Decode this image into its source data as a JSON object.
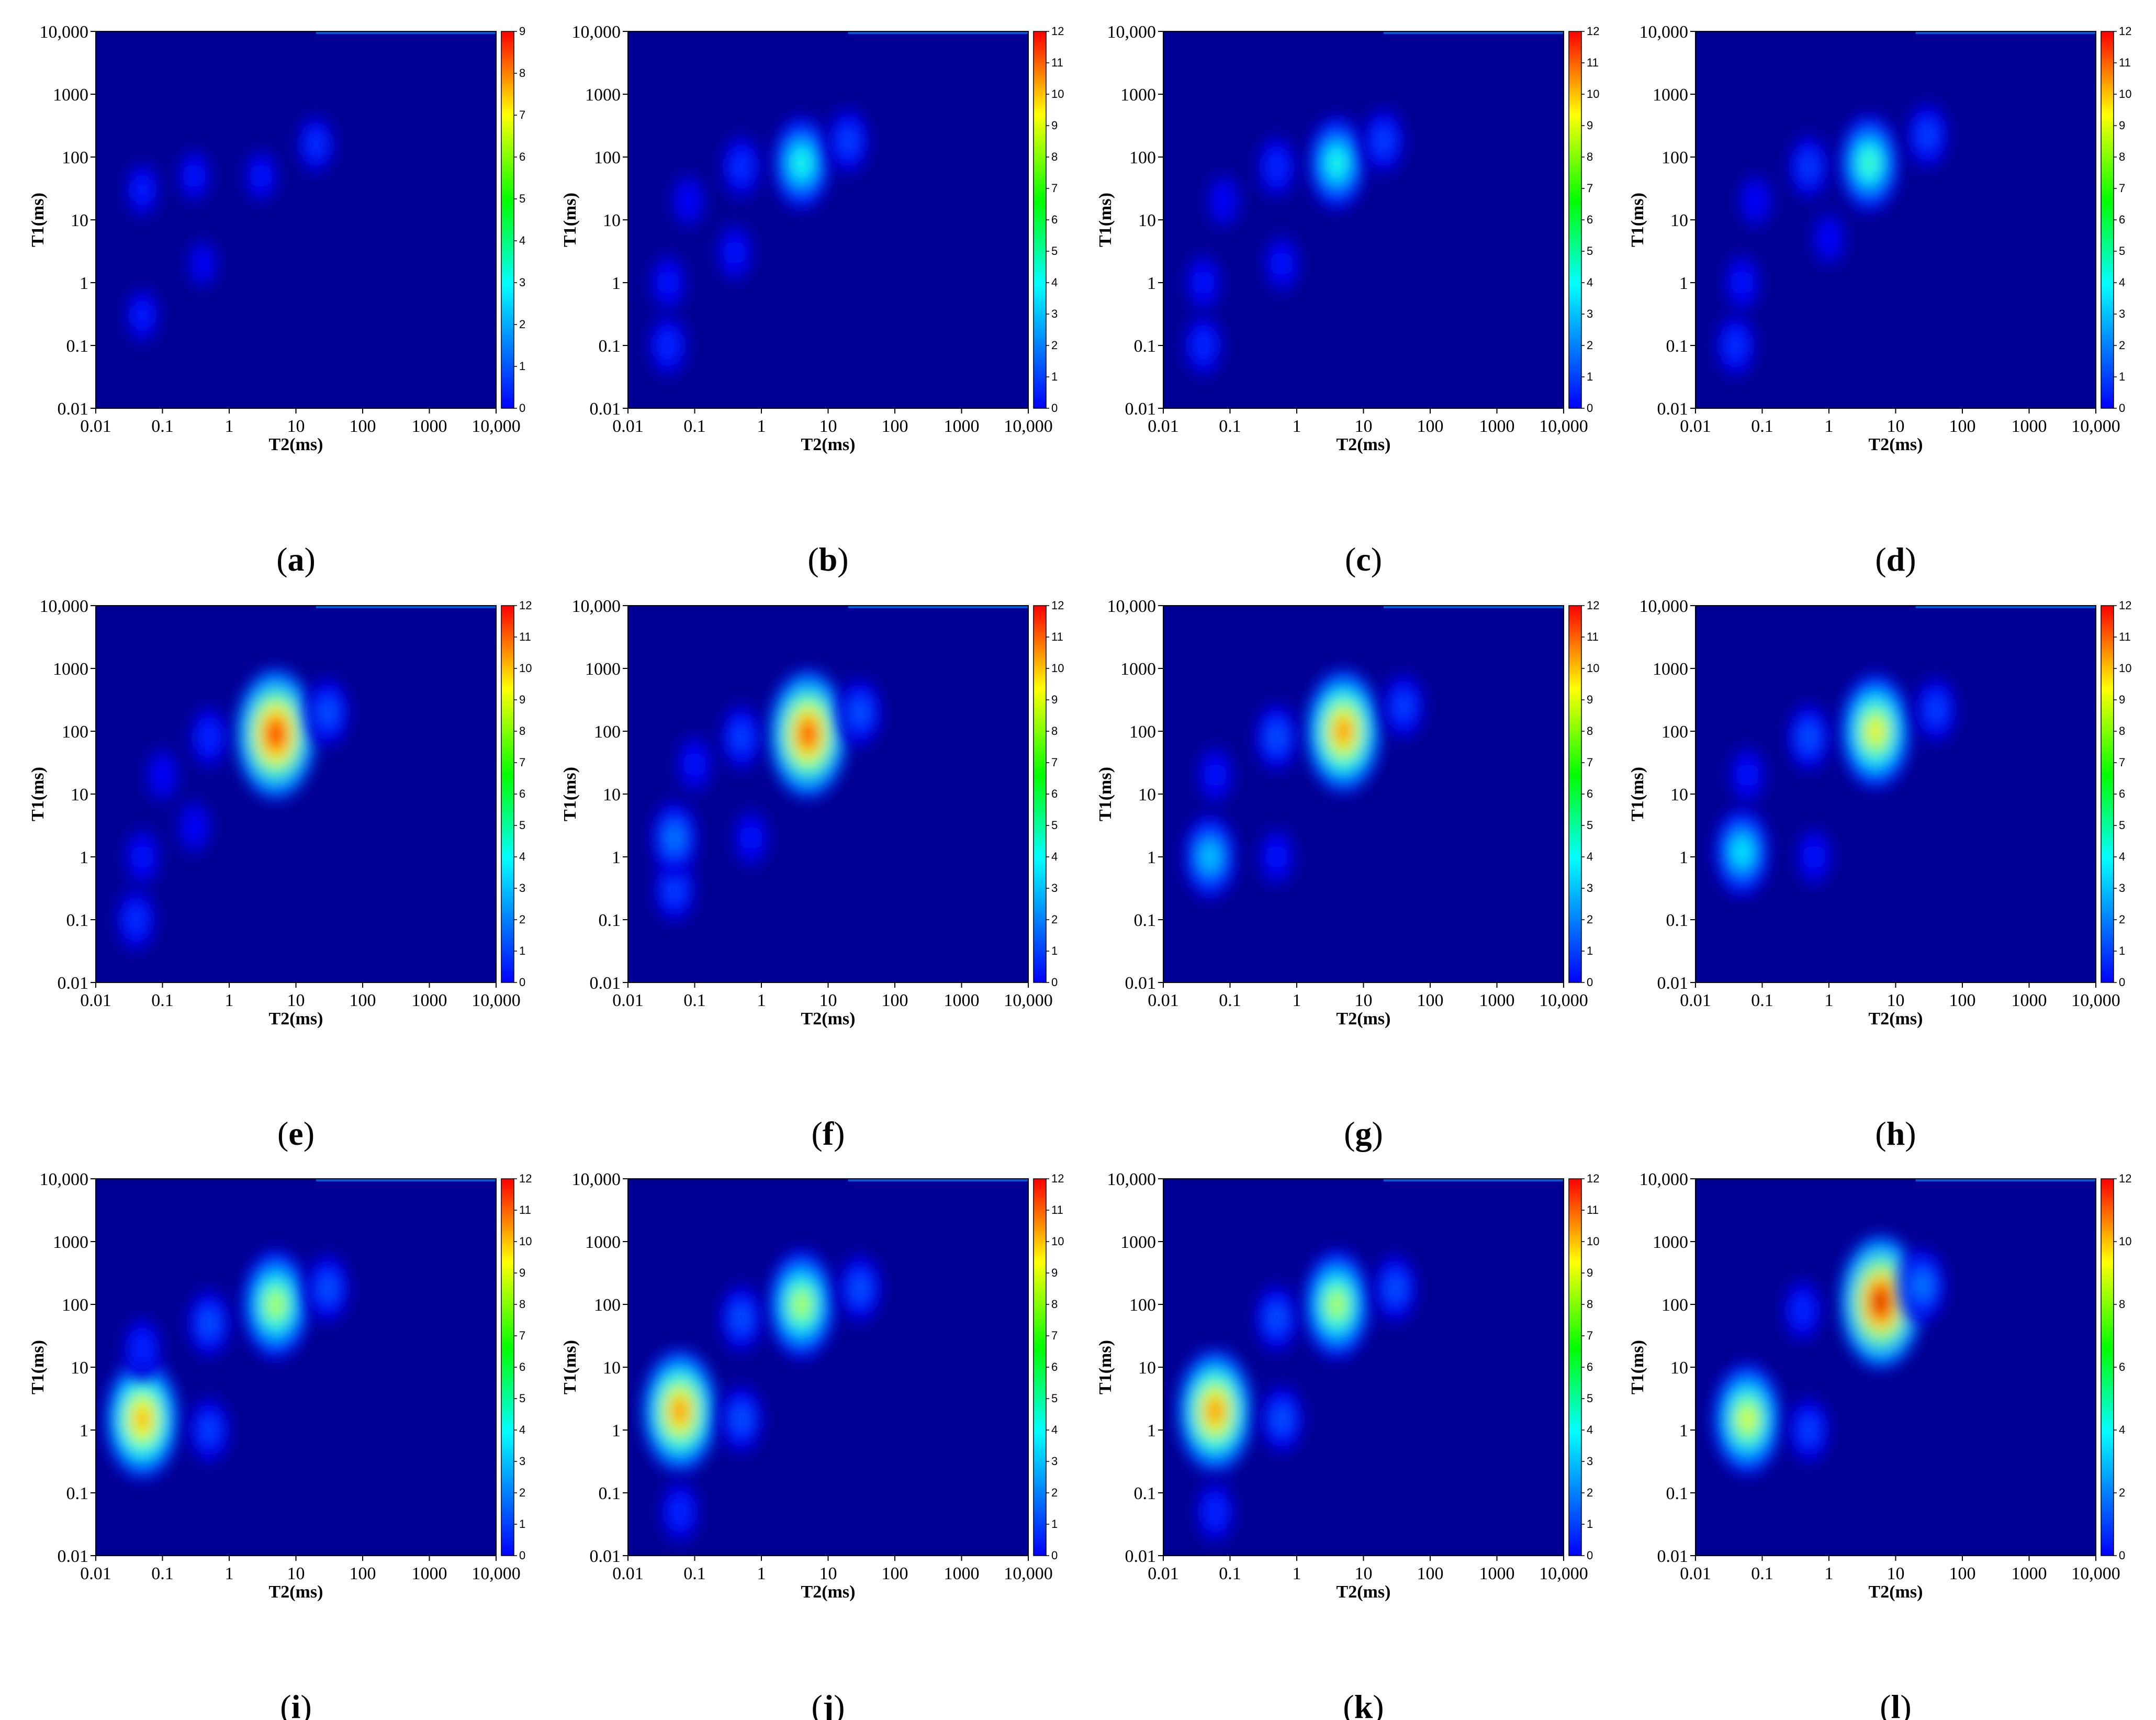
{
  "chart_data": [
    {
      "panel": "a",
      "type": "heatmap",
      "caption_label": "a",
      "xlabel": "T2(ms)",
      "ylabel": "T1(ms)",
      "xlim": [
        0.01,
        10000
      ],
      "ylim": [
        0.01,
        10000
      ],
      "xscale": "log",
      "yscale": "log",
      "xticks": [
        "0.01",
        "0.1",
        "1",
        "10",
        "100",
        "1000",
        "10,000"
      ],
      "yticks": [
        "0.01",
        "0.1",
        "1",
        "10",
        "100",
        "1000",
        "10,000"
      ],
      "colorbar": {
        "min": 0,
        "max": 9,
        "ticks": [
          "0",
          "1",
          "2",
          "3",
          "4",
          "5",
          "6",
          "7",
          "8",
          "9"
        ]
      },
      "peaks": [
        {
          "t2": 0.05,
          "t1": 0.3,
          "amplitude": 1.0
        },
        {
          "t2": 0.05,
          "t1": 30,
          "amplitude": 1.0
        },
        {
          "t2": 0.3,
          "t1": 50,
          "amplitude": 0.9
        },
        {
          "t2": 3,
          "t1": 50,
          "amplitude": 0.9
        },
        {
          "t2": 0.4,
          "t1": 2,
          "amplitude": 0.7
        },
        {
          "t2": 20,
          "t1": 160,
          "amplitude": 1.2
        }
      ]
    },
    {
      "panel": "b",
      "type": "heatmap",
      "caption_label": "b",
      "xlabel": "T2(ms)",
      "ylabel": "T1(ms)",
      "xlim": [
        0.01,
        10000
      ],
      "ylim": [
        0.01,
        10000
      ],
      "xscale": "log",
      "yscale": "log",
      "xticks": [
        "0.01",
        "0.1",
        "1",
        "10",
        "100",
        "1000",
        "10,000"
      ],
      "yticks": [
        "0.01",
        "0.1",
        "1",
        "10",
        "100",
        "1000",
        "10,000"
      ],
      "colorbar": {
        "min": 0,
        "max": 12,
        "ticks": [
          "0",
          "1",
          "2",
          "3",
          "4",
          "5",
          "6",
          "7",
          "8",
          "9",
          "10",
          "11",
          "12"
        ]
      },
      "peaks": [
        {
          "t2": 0.04,
          "t1": 0.1,
          "amplitude": 1.5
        },
        {
          "t2": 0.04,
          "t1": 1,
          "amplitude": 1.2
        },
        {
          "t2": 0.08,
          "t1": 20,
          "amplitude": 1.0
        },
        {
          "t2": 0.5,
          "t1": 70,
          "amplitude": 1.6
        },
        {
          "t2": 0.4,
          "t1": 3,
          "amplitude": 1.2
        },
        {
          "t2": 4,
          "t1": 80,
          "amplitude": 4.5
        },
        {
          "t2": 20,
          "t1": 180,
          "amplitude": 1.8
        }
      ]
    },
    {
      "panel": "c",
      "type": "heatmap",
      "caption_label": "c",
      "xlabel": "T2(ms)",
      "ylabel": "T1(ms)",
      "xlim": [
        0.01,
        10000
      ],
      "ylim": [
        0.01,
        10000
      ],
      "xscale": "log",
      "yscale": "log",
      "xticks": [
        "0.01",
        "0.1",
        "1",
        "10",
        "100",
        "1000",
        "10,000"
      ],
      "yticks": [
        "0.01",
        "0.1",
        "1",
        "10",
        "100",
        "1000",
        "10,000"
      ],
      "colorbar": {
        "min": 0,
        "max": 12,
        "ticks": [
          "0",
          "1",
          "2",
          "3",
          "4",
          "5",
          "6",
          "7",
          "8",
          "9",
          "10",
          "11",
          "12"
        ]
      },
      "peaks": [
        {
          "t2": 0.04,
          "t1": 0.1,
          "amplitude": 1.5
        },
        {
          "t2": 0.04,
          "t1": 1,
          "amplitude": 1.2
        },
        {
          "t2": 0.08,
          "t1": 20,
          "amplitude": 1.0
        },
        {
          "t2": 0.5,
          "t1": 70,
          "amplitude": 1.5
        },
        {
          "t2": 0.6,
          "t1": 2,
          "amplitude": 1.2
        },
        {
          "t2": 4,
          "t1": 80,
          "amplitude": 4.5
        },
        {
          "t2": 20,
          "t1": 180,
          "amplitude": 1.8
        }
      ]
    },
    {
      "panel": "d",
      "type": "heatmap",
      "caption_label": "d",
      "xlabel": "T2(ms)",
      "ylabel": "T1(ms)",
      "xlim": [
        0.01,
        10000
      ],
      "ylim": [
        0.01,
        10000
      ],
      "xscale": "log",
      "yscale": "log",
      "xticks": [
        "0.01",
        "0.1",
        "1",
        "10",
        "100",
        "1000",
        "10,000"
      ],
      "yticks": [
        "0.01",
        "0.1",
        "1",
        "10",
        "100",
        "1000",
        "10,000"
      ],
      "colorbar": {
        "min": 0,
        "max": 12,
        "ticks": [
          "0",
          "1",
          "2",
          "3",
          "4",
          "5",
          "6",
          "7",
          "8",
          "9",
          "10",
          "11",
          "12"
        ]
      },
      "peaks": [
        {
          "t2": 0.04,
          "t1": 0.1,
          "amplitude": 1.6
        },
        {
          "t2": 0.05,
          "t1": 1,
          "amplitude": 1.2
        },
        {
          "t2": 0.08,
          "t1": 20,
          "amplitude": 1.0
        },
        {
          "t2": 0.5,
          "t1": 70,
          "amplitude": 1.7
        },
        {
          "t2": 1,
          "t1": 5,
          "amplitude": 1.0
        },
        {
          "t2": 4,
          "t1": 80,
          "amplitude": 5.0
        },
        {
          "t2": 30,
          "t1": 220,
          "amplitude": 1.8
        }
      ]
    },
    {
      "panel": "e",
      "type": "heatmap",
      "caption_label": "e",
      "xlabel": "T2(ms)",
      "ylabel": "T1(ms)",
      "xlim": [
        0.01,
        10000
      ],
      "ylim": [
        0.01,
        10000
      ],
      "xscale": "log",
      "yscale": "log",
      "xticks": [
        "0.01",
        "0.1",
        "1",
        "10",
        "100",
        "1000",
        "10,000"
      ],
      "yticks": [
        "0.01",
        "0.1",
        "1",
        "10",
        "100",
        "1000",
        "10,000"
      ],
      "colorbar": {
        "min": 0,
        "max": 12,
        "ticks": [
          "0",
          "1",
          "2",
          "3",
          "4",
          "5",
          "6",
          "7",
          "8",
          "9",
          "10",
          "11",
          "12"
        ]
      },
      "peaks": [
        {
          "t2": 0.04,
          "t1": 0.1,
          "amplitude": 1.6
        },
        {
          "t2": 0.05,
          "t1": 1,
          "amplitude": 1.2
        },
        {
          "t2": 0.1,
          "t1": 20,
          "amplitude": 1.0
        },
        {
          "t2": 0.5,
          "t1": 80,
          "amplitude": 1.5
        },
        {
          "t2": 0.3,
          "t1": 3,
          "amplitude": 1.0
        },
        {
          "t2": 5,
          "t1": 90,
          "amplitude": 10.5
        },
        {
          "t2": 30,
          "t1": 200,
          "amplitude": 2.0
        }
      ]
    },
    {
      "panel": "f",
      "type": "heatmap",
      "caption_label": "f",
      "xlabel": "T2(ms)",
      "ylabel": "T1(ms)",
      "xlim": [
        0.01,
        10000
      ],
      "ylim": [
        0.01,
        10000
      ],
      "xscale": "log",
      "yscale": "log",
      "xticks": [
        "0.01",
        "0.1",
        "1",
        "10",
        "100",
        "1000",
        "10,000"
      ],
      "yticks": [
        "0.01",
        "0.1",
        "1",
        "10",
        "100",
        "1000",
        "10,000"
      ],
      "colorbar": {
        "min": 0,
        "max": 12,
        "ticks": [
          "0",
          "1",
          "2",
          "3",
          "4",
          "5",
          "6",
          "7",
          "8",
          "9",
          "10",
          "11",
          "12"
        ]
      },
      "peaks": [
        {
          "t2": 0.05,
          "t1": 0.3,
          "amplitude": 1.8
        },
        {
          "t2": 0.05,
          "t1": 2,
          "amplitude": 2.5
        },
        {
          "t2": 0.1,
          "t1": 30,
          "amplitude": 1.2
        },
        {
          "t2": 0.5,
          "t1": 80,
          "amplitude": 1.8
        },
        {
          "t2": 0.7,
          "t1": 2,
          "amplitude": 1.2
        },
        {
          "t2": 5,
          "t1": 90,
          "amplitude": 10.0
        },
        {
          "t2": 30,
          "t1": 200,
          "amplitude": 2.0
        }
      ]
    },
    {
      "panel": "g",
      "type": "heatmap",
      "caption_label": "g",
      "xlabel": "T2(ms)",
      "ylabel": "T1(ms)",
      "xlim": [
        0.01,
        10000
      ],
      "ylim": [
        0.01,
        10000
      ],
      "xscale": "log",
      "yscale": "log",
      "xticks": [
        "0.01",
        "0.1",
        "1",
        "10",
        "100",
        "1000",
        "10,000"
      ],
      "yticks": [
        "0.01",
        "0.1",
        "1",
        "10",
        "100",
        "1000",
        "10,000"
      ],
      "colorbar": {
        "min": 0,
        "max": 12,
        "ticks": [
          "0",
          "1",
          "2",
          "3",
          "4",
          "5",
          "6",
          "7",
          "8",
          "9",
          "10",
          "11",
          "12"
        ]
      },
      "peaks": [
        {
          "t2": 0.05,
          "t1": 1,
          "amplitude": 3.5
        },
        {
          "t2": 0.06,
          "t1": 20,
          "amplitude": 1.2
        },
        {
          "t2": 0.5,
          "t1": 80,
          "amplitude": 2.0
        },
        {
          "t2": 0.5,
          "t1": 1,
          "amplitude": 1.2
        },
        {
          "t2": 5,
          "t1": 100,
          "amplitude": 9.0
        },
        {
          "t2": 40,
          "t1": 250,
          "amplitude": 1.8
        }
      ]
    },
    {
      "panel": "h",
      "type": "heatmap",
      "caption_label": "h",
      "xlabel": "T2(ms)",
      "ylabel": "T1(ms)",
      "xlim": [
        0.01,
        10000
      ],
      "ylim": [
        0.01,
        10000
      ],
      "xscale": "log",
      "yscale": "log",
      "xticks": [
        "0.01",
        "0.1",
        "1",
        "10",
        "100",
        "1000",
        "10,000"
      ],
      "yticks": [
        "0.01",
        "0.1",
        "1",
        "10",
        "100",
        "1000",
        "10,000"
      ],
      "colorbar": {
        "min": 0,
        "max": 12,
        "ticks": [
          "0",
          "1",
          "2",
          "3",
          "4",
          "5",
          "6",
          "7",
          "8",
          "9",
          "10",
          "11",
          "12"
        ]
      },
      "peaks": [
        {
          "t2": 0.05,
          "t1": 1.2,
          "amplitude": 4.0
        },
        {
          "t2": 0.06,
          "t1": 20,
          "amplitude": 1.2
        },
        {
          "t2": 0.5,
          "t1": 80,
          "amplitude": 2.0
        },
        {
          "t2": 0.6,
          "t1": 1,
          "amplitude": 1.2
        },
        {
          "t2": 5,
          "t1": 100,
          "amplitude": 7.5
        },
        {
          "t2": 40,
          "t1": 220,
          "amplitude": 1.8
        }
      ]
    },
    {
      "panel": "i",
      "type": "heatmap",
      "caption_label": "i",
      "xlabel": "T2(ms)",
      "ylabel": "T1(ms)",
      "xlim": [
        0.01,
        10000
      ],
      "ylim": [
        0.01,
        10000
      ],
      "xscale": "log",
      "yscale": "log",
      "xticks": [
        "0.01",
        "0.1",
        "1",
        "10",
        "100",
        "1000",
        "10,000"
      ],
      "yticks": [
        "0.01",
        "0.1",
        "1",
        "10",
        "100",
        "1000",
        "10,000"
      ],
      "colorbar": {
        "min": 0,
        "max": 12,
        "ticks": [
          "0",
          "1",
          "2",
          "3",
          "4",
          "5",
          "6",
          "7",
          "8",
          "9",
          "10",
          "11",
          "12"
        ]
      },
      "peaks": [
        {
          "t2": 0.05,
          "t1": 1.5,
          "amplitude": 8.5
        },
        {
          "t2": 0.05,
          "t1": 20,
          "amplitude": 1.5
        },
        {
          "t2": 0.5,
          "t1": 50,
          "amplitude": 2.0
        },
        {
          "t2": 0.5,
          "t1": 1,
          "amplitude": 1.8
        },
        {
          "t2": 5,
          "t1": 100,
          "amplitude": 6.5
        },
        {
          "t2": 30,
          "t1": 180,
          "amplitude": 2.0
        }
      ]
    },
    {
      "panel": "j",
      "type": "heatmap",
      "caption_label": "j",
      "xlabel": "T2(ms)",
      "ylabel": "T1(ms)",
      "xlim": [
        0.01,
        10000
      ],
      "ylim": [
        0.01,
        10000
      ],
      "xscale": "log",
      "yscale": "log",
      "xticks": [
        "0.01",
        "0.1",
        "1",
        "10",
        "100",
        "1000",
        "10,000"
      ],
      "yticks": [
        "0.01",
        "0.1",
        "1",
        "10",
        "100",
        "1000",
        "10,000"
      ],
      "colorbar": {
        "min": 0,
        "max": 12,
        "ticks": [
          "0",
          "1",
          "2",
          "3",
          "4",
          "5",
          "6",
          "7",
          "8",
          "9",
          "10",
          "11",
          "12"
        ]
      },
      "peaks": [
        {
          "t2": 0.06,
          "t1": 2,
          "amplitude": 9.0
        },
        {
          "t2": 0.06,
          "t1": 0.05,
          "amplitude": 1.5
        },
        {
          "t2": 0.5,
          "t1": 60,
          "amplitude": 2.0
        },
        {
          "t2": 0.5,
          "t1": 1.5,
          "amplitude": 2.0
        },
        {
          "t2": 4,
          "t1": 100,
          "amplitude": 6.5
        },
        {
          "t2": 30,
          "t1": 180,
          "amplitude": 2.0
        }
      ]
    },
    {
      "panel": "k",
      "type": "heatmap",
      "caption_label": "k",
      "xlabel": "T2(ms)",
      "ylabel": "T1(ms)",
      "xlim": [
        0.01,
        10000
      ],
      "ylim": [
        0.01,
        10000
      ],
      "xscale": "log",
      "yscale": "log",
      "xticks": [
        "0.01",
        "0.1",
        "1",
        "10",
        "100",
        "1000",
        "10,000"
      ],
      "yticks": [
        "0.01",
        "0.1",
        "1",
        "10",
        "100",
        "1000",
        "10,000"
      ],
      "colorbar": {
        "min": 0,
        "max": 12,
        "ticks": [
          "0",
          "1",
          "2",
          "3",
          "4",
          "5",
          "6",
          "7",
          "8",
          "9",
          "10",
          "11",
          "12"
        ]
      },
      "peaks": [
        {
          "t2": 0.06,
          "t1": 2,
          "amplitude": 9.0
        },
        {
          "t2": 0.06,
          "t1": 0.05,
          "amplitude": 1.5
        },
        {
          "t2": 0.5,
          "t1": 60,
          "amplitude": 2.0
        },
        {
          "t2": 0.6,
          "t1": 1.5,
          "amplitude": 2.0
        },
        {
          "t2": 4,
          "t1": 100,
          "amplitude": 6.5
        },
        {
          "t2": 30,
          "t1": 180,
          "amplitude": 2.0
        }
      ]
    },
    {
      "panel": "l",
      "type": "heatmap",
      "caption_label": "l",
      "xlabel": "T2(ms)",
      "ylabel": "T1(ms)",
      "xlim": [
        0.01,
        10000
      ],
      "ylim": [
        0.01,
        10000
      ],
      "xscale": "log",
      "yscale": "log",
      "xticks": [
        "0.01",
        "0.1",
        "1",
        "10",
        "100",
        "1000",
        "10,000"
      ],
      "yticks": [
        "0.01",
        "0.1",
        "1",
        "10",
        "100",
        "1000",
        "10,000"
      ],
      "colorbar": {
        "min": 0,
        "max": 12,
        "ticks": [
          "0",
          "2",
          "4",
          "6",
          "8",
          "10",
          "12"
        ]
      },
      "peaks": [
        {
          "t2": 0.06,
          "t1": 1.5,
          "amplitude": 7.0
        },
        {
          "t2": 0.4,
          "t1": 80,
          "amplitude": 1.5
        },
        {
          "t2": 0.5,
          "t1": 1,
          "amplitude": 1.8
        },
        {
          "t2": 6,
          "t1": 110,
          "amplitude": 11.0
        },
        {
          "t2": 25,
          "t1": 200,
          "amplitude": 2.5
        }
      ]
    }
  ]
}
